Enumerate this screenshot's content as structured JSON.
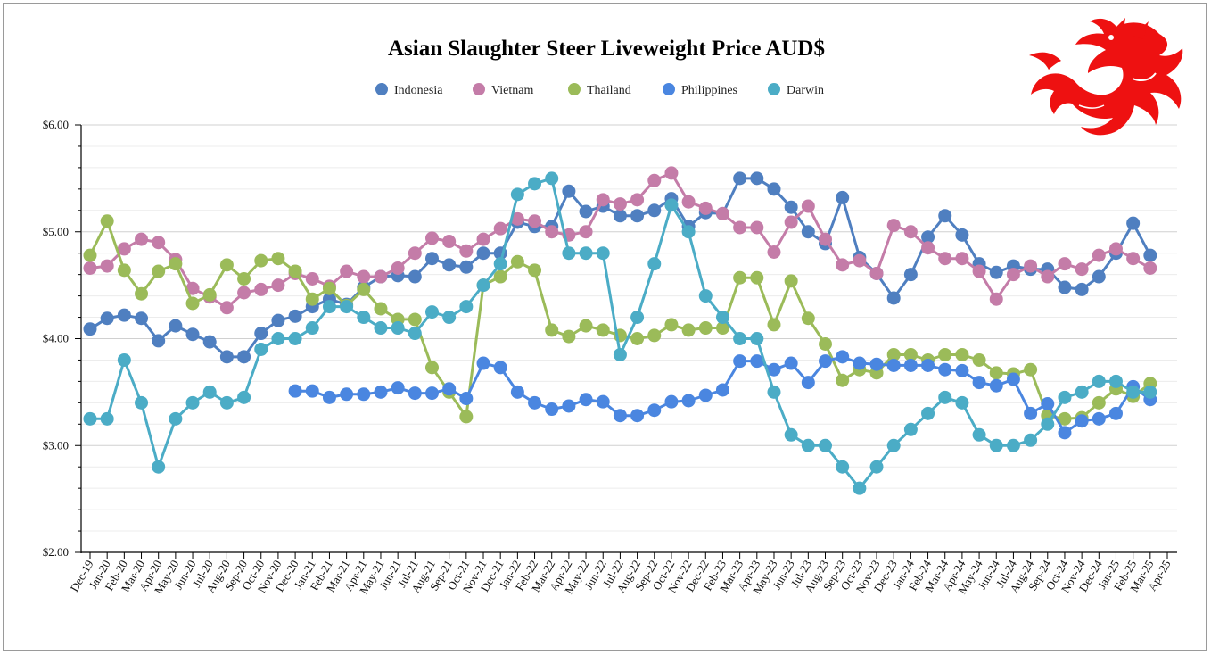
{
  "chart_data": {
    "type": "line",
    "title": "Asian Slaughter Steer Liveweight Price AUD$",
    "xlabel": "",
    "ylabel": "",
    "ylim": [
      2.0,
      6.0
    ],
    "ytick_labels": [
      "$2.00",
      "$3.00",
      "$4.00",
      "$5.00",
      "$6.00"
    ],
    "legend_position": "top-center",
    "grid": true,
    "categories": [
      "Dec-19",
      "Jan-20",
      "Feb-20",
      "Mar-20",
      "Apr-20",
      "May-20",
      "Jun-20",
      "Jul-20",
      "Aug-20",
      "Sep-20",
      "Oct-20",
      "Nov-20",
      "Dec-20",
      "Jan-21",
      "Feb-21",
      "Mar-21",
      "Apr-21",
      "May-21",
      "Jun-21",
      "Jul-21",
      "Aug-21",
      "Sep-21",
      "Oct-21",
      "Nov-21",
      "Dec-21",
      "Jan-22",
      "Feb-22",
      "Mar-22",
      "Apr-22",
      "May-22",
      "Jun-22",
      "Jul-22",
      "Aug-22",
      "Sep-22",
      "Oct-22",
      "Nov-22",
      "Dec-22",
      "Feb-23",
      "Mar-23",
      "Apr-23",
      "May-23",
      "Jun-23",
      "Jul-23",
      "Aug-23",
      "Sep-23",
      "Oct-23",
      "Nov-23",
      "Dec-23",
      "Jan-24",
      "Feb-24",
      "Mar-24",
      "Apr-24",
      "May-24",
      "Jun-24",
      "Jul-24",
      "Aug-24",
      "Sep-24",
      "Oct-24",
      "Nov-24",
      "Dec-24",
      "Jan-25",
      "Feb-25",
      "Mar-25",
      "Apr-25"
    ],
    "series": [
      {
        "name": "Indonesia",
        "color": "#4f7fc0",
        "values": [
          4.09,
          4.19,
          4.22,
          4.19,
          3.98,
          4.12,
          4.04,
          3.97,
          3.83,
          3.83,
          4.05,
          4.17,
          4.21,
          4.3,
          4.37,
          4.32,
          4.48,
          4.58,
          4.59,
          4.58,
          4.75,
          4.69,
          4.67,
          4.8,
          4.8,
          5.09,
          5.05,
          5.05,
          5.38,
          5.19,
          5.24,
          5.15,
          5.15,
          5.2,
          5.31,
          5.05,
          5.18,
          5.17,
          5.5,
          5.5,
          5.4,
          5.23,
          5.0,
          4.89,
          5.32,
          4.76,
          4.61,
          4.38,
          4.6,
          4.95,
          5.15,
          4.97,
          4.7,
          4.62,
          4.68,
          4.65,
          4.65,
          4.48,
          4.46,
          4.58,
          4.8,
          5.08,
          4.78,
          null
        ]
      },
      {
        "name": "Vietnam",
        "color": "#c47ca8",
        "values": [
          4.66,
          4.68,
          4.84,
          4.93,
          4.9,
          4.74,
          4.47,
          4.39,
          4.29,
          4.43,
          4.46,
          4.5,
          4.61,
          4.56,
          4.49,
          4.63,
          4.58,
          4.58,
          4.66,
          4.8,
          4.94,
          4.91,
          4.82,
          4.93,
          5.03,
          5.12,
          5.1,
          5.0,
          4.97,
          5.0,
          5.3,
          5.26,
          5.3,
          5.48,
          5.55,
          5.28,
          5.22,
          5.17,
          5.04,
          5.04,
          4.81,
          5.09,
          5.24,
          4.93,
          4.69,
          4.73,
          4.61,
          5.06,
          5.0,
          4.85,
          4.75,
          4.75,
          4.63,
          4.37,
          4.6,
          4.68,
          4.58,
          4.7,
          4.65,
          4.78,
          4.84,
          4.75,
          4.66,
          null
        ]
      },
      {
        "name": "Thailand",
        "color": "#9bbb59",
        "values": [
          4.78,
          5.1,
          4.64,
          4.42,
          4.63,
          4.7,
          4.33,
          4.41,
          4.69,
          4.56,
          4.73,
          4.75,
          4.63,
          4.37,
          4.47,
          4.31,
          4.46,
          4.28,
          4.18,
          4.18,
          3.73,
          3.5,
          3.27,
          4.5,
          4.58,
          4.72,
          4.64,
          4.08,
          4.02,
          4.12,
          4.08,
          4.03,
          4.0,
          4.03,
          4.13,
          4.08,
          4.1,
          4.1,
          4.57,
          4.57,
          4.13,
          4.54,
          4.19,
          3.95,
          3.61,
          3.71,
          3.68,
          3.85,
          3.85,
          3.8,
          3.85,
          3.85,
          3.8,
          3.68,
          3.67,
          3.71,
          3.28,
          3.25,
          3.26,
          3.4,
          3.53,
          3.46,
          3.58,
          null
        ]
      },
      {
        "name": "Philippines",
        "color": "#4a86e0",
        "values": [
          null,
          null,
          null,
          null,
          null,
          null,
          null,
          null,
          null,
          null,
          null,
          null,
          3.51,
          3.51,
          3.45,
          3.48,
          3.48,
          3.5,
          3.54,
          3.49,
          3.49,
          3.53,
          3.44,
          3.77,
          3.73,
          3.5,
          3.4,
          3.34,
          3.37,
          3.43,
          3.41,
          3.28,
          3.28,
          3.33,
          3.41,
          3.42,
          3.47,
          3.52,
          3.79,
          3.79,
          3.71,
          3.77,
          3.59,
          3.79,
          3.83,
          3.77,
          3.76,
          3.75,
          3.75,
          3.75,
          3.71,
          3.7,
          3.59,
          3.56,
          3.62,
          3.3,
          3.39,
          3.12,
          3.23,
          3.25,
          3.3,
          3.55,
          3.43,
          null
        ]
      },
      {
        "name": "Darwin",
        "color": "#4bacc6",
        "values": [
          3.25,
          3.25,
          3.8,
          3.4,
          2.8,
          3.25,
          3.4,
          3.5,
          3.4,
          3.45,
          3.9,
          4.0,
          4.0,
          4.1,
          4.3,
          4.3,
          4.2,
          4.1,
          4.1,
          4.05,
          4.25,
          4.2,
          4.3,
          4.5,
          4.7,
          5.35,
          5.45,
          5.5,
          4.8,
          4.8,
          4.8,
          3.85,
          4.2,
          4.7,
          5.25,
          5.0,
          4.4,
          4.2,
          4.0,
          4.0,
          3.5,
          3.1,
          3.0,
          3.0,
          2.8,
          2.6,
          2.8,
          3.0,
          3.15,
          3.3,
          3.45,
          3.4,
          3.1,
          3.0,
          3.0,
          3.05,
          3.2,
          3.45,
          3.5,
          3.6,
          3.6,
          3.5,
          3.5,
          null
        ]
      }
    ]
  },
  "logo": {
    "icon": "dragon-logo-icon",
    "color": "#ee1111"
  }
}
